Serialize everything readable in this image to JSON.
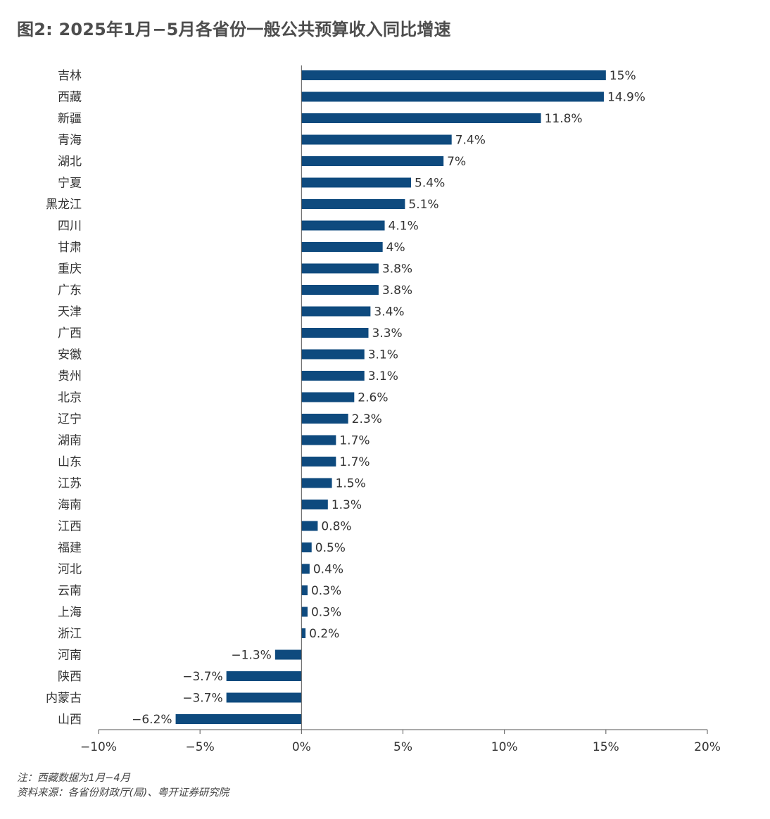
{
  "title": "图2: 2025年1月−5月各省份一般公共预算收入同比增速",
  "notes": {
    "note": "注：西藏数据为1月−4月",
    "source": "资料来源：各省份财政厅(局)、粤开证券研究院"
  },
  "colors": {
    "bar": "#0e4a7e",
    "axis": "#555555"
  },
  "chart_data": {
    "type": "bar",
    "orientation": "horizontal",
    "categories": [
      "吉林",
      "西藏",
      "新疆",
      "青海",
      "湖北",
      "宁夏",
      "黑龙江",
      "四川",
      "甘肃",
      "重庆",
      "广东",
      "天津",
      "广西",
      "安徽",
      "贵州",
      "北京",
      "辽宁",
      "湖南",
      "山东",
      "江苏",
      "海南",
      "江西",
      "福建",
      "河北",
      "云南",
      "上海",
      "浙江",
      "河南",
      "陕西",
      "内蒙古",
      "山西"
    ],
    "values": [
      15,
      14.9,
      11.8,
      7.4,
      7,
      5.4,
      5.1,
      4.1,
      4,
      3.8,
      3.8,
      3.4,
      3.3,
      3.1,
      3.1,
      2.6,
      2.3,
      1.7,
      1.7,
      1.5,
      1.3,
      0.8,
      0.5,
      0.4,
      0.3,
      0.3,
      0.2,
      -1.3,
      -3.7,
      -3.7,
      -6.2
    ],
    "data_labels": [
      "15%",
      "14.9%",
      "11.8%",
      "7.4%",
      "7%",
      "5.4%",
      "5.1%",
      "4.1%",
      "4%",
      "3.8%",
      "3.8%",
      "3.4%",
      "3.3%",
      "3.1%",
      "3.1%",
      "2.6%",
      "2.3%",
      "1.7%",
      "1.7%",
      "1.5%",
      "1.3%",
      "0.8%",
      "0.5%",
      "0.4%",
      "0.3%",
      "0.3%",
      "0.2%",
      "−1.3%",
      "−3.7%",
      "−3.7%",
      "−6.2%"
    ],
    "xlim": [
      -10,
      20
    ],
    "xticks": [
      -10,
      -5,
      0,
      5,
      10,
      15,
      20
    ],
    "xtick_labels": [
      "−10%",
      "−5%",
      "0%",
      "5%",
      "10%",
      "15%",
      "20%"
    ],
    "grid": false,
    "legend": "none"
  }
}
